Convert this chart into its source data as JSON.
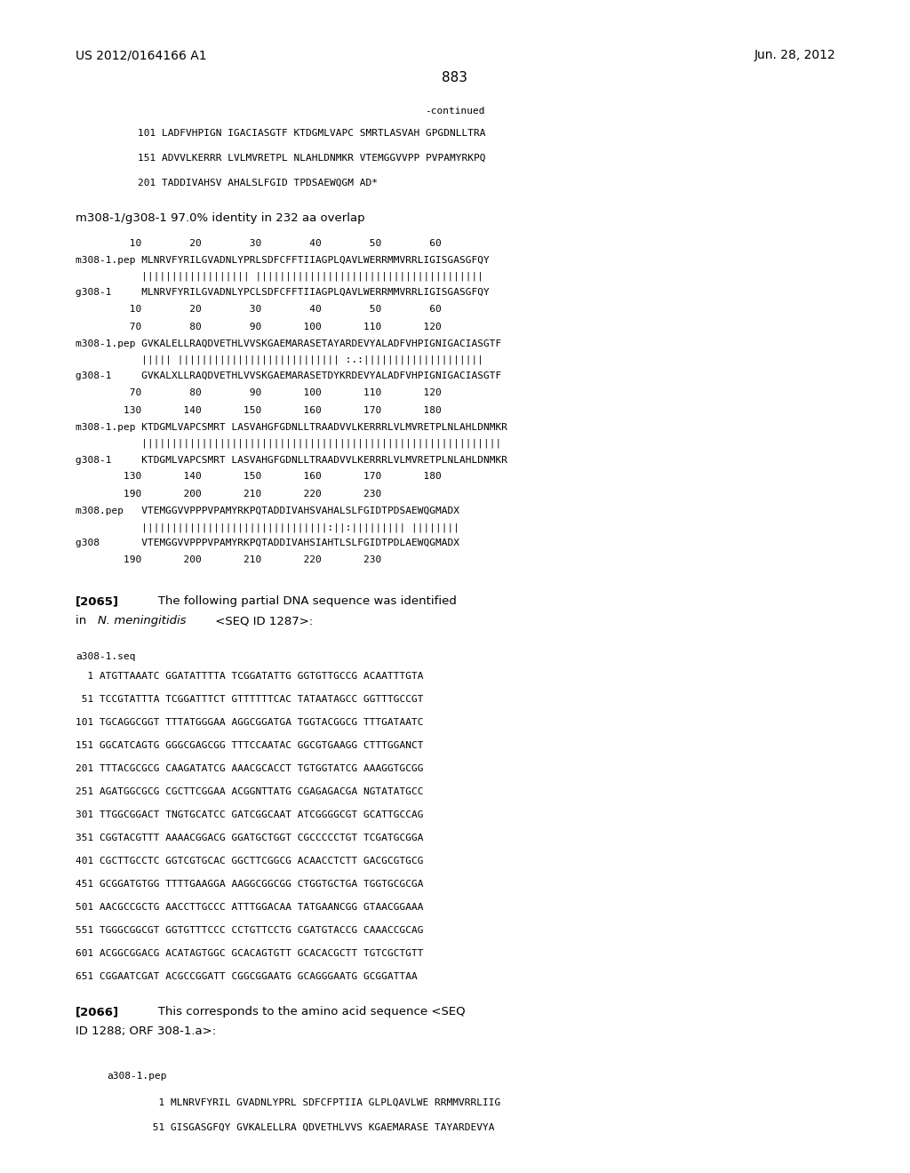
{
  "background_color": "#ffffff",
  "text_color": "#000000",
  "header_left": "US 2012/0164166 A1",
  "header_right": "Jun. 28, 2012",
  "page_number": "883",
  "continued": "-continued",
  "seq_lines": [
    "101 LADFVHPIGN IGACIASGTF KTDGMLVAPC SMRTLASVAH GPGDNLLTRA",
    "151 ADVVLKERRR LVLMVRETPL NLAHLDNMKR VTEMGGVVPP PVPAMYRKPQ",
    "201 TADDIVAHSV AHALSLFGID TPDSAEWQGM AD*"
  ],
  "identity_line": "m308-1/g308-1 97.0% identity in 232 aa overlap",
  "align_block1_nums_top": "         10        20        30        40        50        60",
  "align_block1_seq1": "m308-1.pep MLNRVFYRILGVADNLYPRLSDFCFFTIIAGPLQAVLWERRMMVRRLIGISGASGFQY",
  "align_block1_match": "           |||||||||||||||||| ||||||||||||||||||||||||||||||||||||||",
  "align_block1_seq2": "g308-1     MLNRVFYRILGVADNLYPCLSDFCFFTIIAGPLQAVLWERRMMVRRLIGISGASGFQY",
  "align_block1_nums_bot": "         10        20        30        40        50        60",
  "align_block2_nums_top": "         70        80        90       100       110       120",
  "align_block2_seq1": "m308-1.pep GVKALELLRAQDVETHLVVSKGAEMARASETAYARDEVYALADFVHPIGNIGACIASGTF",
  "align_block2_match": "           ||||| ||||||||||||||||||||||||||| :.:||||||||||||||||||||",
  "align_block2_seq2": "g308-1     GVKALXLLRAQDVETHLVVSKGAEMARASETDYKRDEVYALADFVHPIGNIGACIASGTF",
  "align_block2_nums_bot": "         70        80        90       100       110       120",
  "align_block3_nums_top": "        130       140       150       160       170       180",
  "align_block3_seq1": "m308-1.pep KTDGMLVAPCSMRT LASVAHGFGDNLLTRAADVVLKERRRLVLMVRETPLNLAHLDNMKR",
  "align_block3_match": "           ||||||||||||||||||||||||||||||||||||||||||||||||||||||||||||",
  "align_block3_seq2": "g308-1     KTDGMLVAPCSMRT LASVAHGFGDNLLTRAADVVLKERRRLVLMVRETPLNLAHLDNMKR",
  "align_block3_nums_bot": "        130       140       150       160       170       180",
  "align_block4_nums_top": "        190       200       210       220       230",
  "align_block4_seq1": "m308.pep   VTEMGGVVPPPVPAMYRKPQTADDIVAHSVAHALSLFGIDTPDSAEWQGMADX",
  "align_block4_match": "           |||||||||||||||||||||||||||||||:||:||||||||| ||||||||",
  "align_block4_seq2": "g308       VTEMGGVVPPPVPAMYRKPQTADDIVAHSIAHTLSLFGIDTPDLAEWQGMADX",
  "align_block4_nums_bot": "        190       200       210       220       230",
  "para2065_line1": "[2065]    The following partial DNA sequence was identified",
  "para2065_line2_pre": "in ",
  "para2065_line2_italic": "N. meningitidis",
  "para2065_line2_post": " <SEQ ID 1287>:",
  "dna_label": "a308-1.seq",
  "dna_lines": [
    "  1 ATGTTAAATC GGATATTTTA TCGGATATTG GGTGTTGCCG ACAATTTGTA",
    " 51 TCCGTATTTA TCGGATTTCT GTTTTTTCAC TATAATAGCC GGTTTGCCGT",
    "101 TGCAGGCGGT TTTATGGGAA AGGCGGATGA TGGTACGGCG TTTGATAATC",
    "151 GGCATCAGTG GGGCGAGCGG TTTCCAATAC GGCGTGAAGG CTTTGGANCT",
    "201 TTTACGCGCG CAAGATATCG AAACGCACCT TGTGGTATCG AAAGGTGCGG",
    "251 AGATGGCGCG CGCTTCGGAA ACGGNTTATG CGAGAGACGA NGTATATGCC",
    "301 TTGGCGGACT TNGTGCATCC GATCGGCAAT ATCGGGGCGT GCATTGCCAG",
    "351 CGGTACGTTT AAAACGGACG GGATGCTGGT CGCCCCCTGT TCGATGCGGA",
    "401 CGCTTGCCTC GGTCGTGCAC GGCTTCGGCG ACAACCTCTT GACGCGTGCG",
    "451 GCGGATGTGG TTTTGAAGGA AAGGCGGCGG CTGGTGCTGA TGGTGCGCGA",
    "501 AACGCCGCTG AACCTTGCCC ATTTGGACAA TATGAANCGG GTAACGGAAA",
    "551 TGGGCGGCGT GGTGTTTCCC CCTGTTCCTG CGATGTACCG CAAACCGCAG",
    "601 ACGGCGGACG ACATAGTGGC GCACAGTGTT GCACACGCTT TGTCGCTGTT",
    "651 CGGAATCGAT ACGCCGGATT CGGCGGAATG GCAGGGAATG GCGGATTAA"
  ],
  "para2066_line1": "[2066]    This corresponds to the amino acid sequence <SEQ",
  "para2066_line2": "ID 1288; ORF 308-1.a>:",
  "pep_label": "a308-1.pep",
  "pep_line1": "  1 MLNRVFYRIL GVADNLYPRL SDFCFPTIIA GLPLQAVLWE RRMMVRRLIIG",
  "pep_line2": " 51 GISGASGFQY GVKALELLRA QDVETHLVVS KGAEMARASE TAYARDEVYA",
  "underline_start": "SDFCFPTIIA GLPLQAVLWE",
  "mono_size": 8.0,
  "body_size": 9.5,
  "header_size": 10.0
}
